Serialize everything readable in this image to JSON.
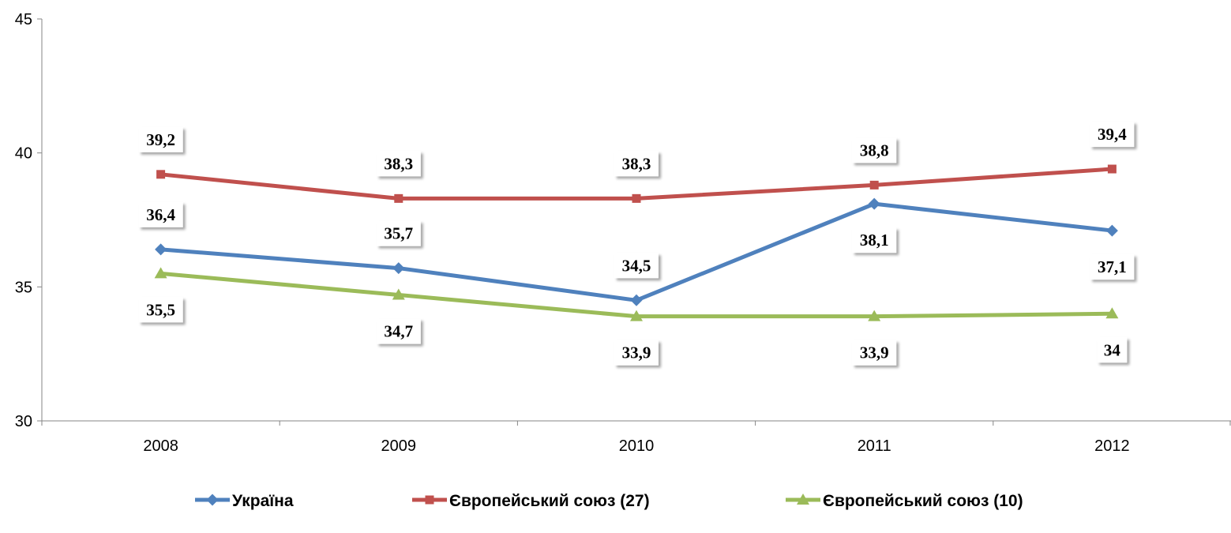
{
  "chart_data": {
    "type": "line",
    "categories": [
      "2008",
      "2009",
      "2010",
      "2011",
      "2012"
    ],
    "ylim": [
      30,
      45
    ],
    "yticks": [
      30,
      35,
      40,
      45
    ],
    "grid": false,
    "legend_position": "bottom",
    "series": [
      {
        "name": "Україна",
        "color": "#4f81bd",
        "marker": "diamond",
        "values": [
          36.4,
          35.7,
          34.5,
          38.1,
          37.1
        ],
        "labels": [
          "36,4",
          "35,7",
          "34,5",
          "38,1",
          "37,1"
        ]
      },
      {
        "name": "Європейський союз (27)",
        "color": "#c0504d",
        "marker": "square",
        "values": [
          39.2,
          38.3,
          38.3,
          38.8,
          39.4
        ],
        "labels": [
          "39,2",
          "38,3",
          "38,3",
          "38,8",
          "39,4"
        ]
      },
      {
        "name": "Європейський союз (10)",
        "color": "#9bbb59",
        "marker": "triangle",
        "values": [
          35.5,
          34.7,
          33.9,
          33.9,
          34.0
        ],
        "labels": [
          "35,5",
          "34,7",
          "33,9",
          "33,9",
          "34"
        ]
      }
    ]
  }
}
